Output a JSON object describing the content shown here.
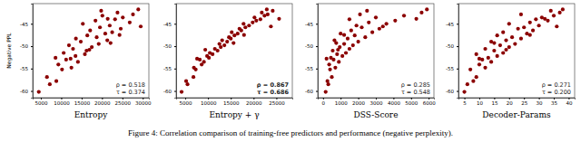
{
  "chart_data": [
    {
      "type": "scatter",
      "x_label": "Entropy",
      "y_label": "Negative PPL",
      "color": "#8b0000",
      "annotations": [
        "ρ = 0.518",
        "τ = 0.374"
      ],
      "xlim": [
        3000,
        31500
      ],
      "xticks": [
        5000,
        10000,
        15000,
        20000,
        25000,
        30000
      ],
      "ylim": [
        -61.5,
        -40.5
      ],
      "yticks": [
        -60,
        -55,
        -50,
        -45
      ],
      "grid": false,
      "x": [
        4500,
        7200,
        8800,
        6500,
        10200,
        12500,
        9300,
        14100,
        11200,
        8600,
        13500,
        15800,
        10600,
        16200,
        12900,
        17500,
        11900,
        19200,
        14800,
        21300,
        13600,
        18700,
        16400,
        20800,
        22500,
        17100,
        24600,
        19500,
        21900,
        15300,
        26800,
        18400,
        23200,
        25100,
        20100,
        27600,
        23800,
        19800,
        28900,
        24300,
        22100,
        12300,
        29500,
        21400,
        16900
      ],
      "y": [
        -60.2,
        -58.5,
        -57.8,
        -56.9,
        -55.2,
        -54.8,
        -54.1,
        -53.5,
        -53.0,
        -52.6,
        -52.2,
        -51.8,
        -51.5,
        -51.0,
        -50.6,
        -50.2,
        -49.8,
        -49.5,
        -49.0,
        -48.7,
        -48.3,
        -48.0,
        -47.6,
        -47.2,
        -46.9,
        -46.5,
        -46.1,
        -45.8,
        -45.4,
        -45.0,
        -44.7,
        -44.3,
        -44.0,
        -43.6,
        -43.2,
        -42.9,
        -42.5,
        -42.1,
        -41.8,
        -47.5,
        -49.3,
        -52.8,
        -45.6,
        -43.9,
        -50.8
      ]
    },
    {
      "type": "scatter",
      "x_label": "Entropy + γ",
      "color": "#8b0000",
      "annotations": [
        "ρ = 0.867",
        "τ = 0.686"
      ],
      "xlim": [
        3000,
        28500
      ],
      "xticks": [
        5000,
        10000,
        15000,
        20000,
        25000
      ],
      "ylim": [
        -61.5,
        -40.5
      ],
      "yticks": [
        -60,
        -55,
        -50,
        -45
      ],
      "grid": false,
      "x": [
        4200,
        5500,
        5200,
        6800,
        7300,
        6900,
        8600,
        9100,
        8200,
        10200,
        9800,
        11000,
        10400,
        12100,
        11500,
        12800,
        13600,
        12500,
        14200,
        13100,
        15000,
        14600,
        15800,
        16500,
        15200,
        17300,
        16900,
        18200,
        19000,
        17800,
        19800,
        20600,
        21500,
        20200,
        22400,
        23100,
        21800,
        24200,
        22900,
        17900,
        15600,
        7600,
        23800,
        25600,
        9400
      ],
      "y": [
        -60.2,
        -58.5,
        -57.8,
        -56.9,
        -55.2,
        -54.8,
        -54.1,
        -53.5,
        -53.0,
        -52.6,
        -52.2,
        -51.8,
        -51.5,
        -51.0,
        -50.6,
        -50.2,
        -49.8,
        -49.5,
        -49.0,
        -48.7,
        -48.3,
        -48.0,
        -47.6,
        -47.2,
        -46.9,
        -46.5,
        -46.1,
        -45.8,
        -45.4,
        -45.0,
        -44.7,
        -44.3,
        -44.0,
        -43.6,
        -43.2,
        -42.9,
        -42.5,
        -42.1,
        -41.8,
        -47.5,
        -49.3,
        -52.8,
        -45.6,
        -43.9,
        -50.8
      ]
    },
    {
      "type": "scatter",
      "x_label": "DSS-Score",
      "color": "#8b0000",
      "annotations": [
        "ρ = 0.285",
        "τ = 0.548"
      ],
      "xlim": [
        -300,
        6300
      ],
      "xticks": [
        0,
        1000,
        2000,
        3000,
        4000,
        5000,
        6000
      ],
      "ylim": [
        -61.5,
        -40.5
      ],
      "yticks": [
        -60,
        -55,
        -50,
        -45
      ],
      "grid": false,
      "x": [
        150,
        300,
        250,
        500,
        400,
        700,
        350,
        900,
        600,
        450,
        1100,
        800,
        1300,
        550,
        1500,
        950,
        1700,
        1200,
        2000,
        650,
        1400,
        2400,
        1800,
        1000,
        2800,
        1600,
        3200,
        2200,
        1900,
        3600,
        2600,
        4100,
        1500,
        3000,
        4600,
        2100,
        5600,
        2500,
        5900,
        1200,
        750,
        200,
        3400,
        5300,
        850
      ],
      "y": [
        -60.2,
        -58.5,
        -57.8,
        -56.9,
        -55.2,
        -54.8,
        -54.1,
        -53.5,
        -53.0,
        -52.6,
        -52.2,
        -51.8,
        -51.5,
        -51.0,
        -50.6,
        -50.2,
        -49.8,
        -49.5,
        -49.0,
        -48.7,
        -48.3,
        -48.0,
        -47.6,
        -47.2,
        -46.9,
        -46.5,
        -46.1,
        -45.8,
        -45.4,
        -45.0,
        -44.7,
        -44.3,
        -44.0,
        -43.6,
        -43.2,
        -42.9,
        -42.5,
        -42.1,
        -41.8,
        -47.5,
        -49.3,
        -52.8,
        -45.6,
        -43.9,
        -50.8
      ]
    },
    {
      "type": "scatter",
      "x_label": "Decoder-Params",
      "color": "#8b0000",
      "annotations": [
        "ρ = 0.271",
        "τ = 0.200"
      ],
      "xlim": [
        3,
        42
      ],
      "xticks": [
        5,
        10,
        15,
        20,
        25,
        30,
        35,
        40
      ],
      "ylim": [
        -61.5,
        -40.5
      ],
      "yticks": [
        -60,
        -55,
        -50,
        -45
      ],
      "grid": false,
      "x": [
        5,
        6,
        8,
        9,
        7,
        12,
        10,
        14,
        11,
        13,
        16,
        9,
        18,
        15,
        12,
        20,
        17,
        22,
        14,
        19,
        24,
        21,
        16,
        26,
        18,
        28,
        23,
        25,
        30,
        20,
        27,
        33,
        29,
        31,
        35,
        24,
        37,
        34,
        38,
        27,
        15,
        10,
        36,
        32,
        19
      ],
      "y": [
        -60.2,
        -58.5,
        -57.8,
        -56.9,
        -55.2,
        -54.8,
        -54.1,
        -53.5,
        -53.0,
        -52.6,
        -52.2,
        -51.8,
        -51.5,
        -51.0,
        -50.6,
        -50.2,
        -49.8,
        -49.5,
        -49.0,
        -48.7,
        -48.3,
        -48.0,
        -47.6,
        -47.2,
        -46.9,
        -46.5,
        -46.1,
        -45.8,
        -45.4,
        -45.0,
        -44.7,
        -44.3,
        -44.0,
        -43.6,
        -43.2,
        -42.9,
        -42.5,
        -42.1,
        -41.8,
        -47.5,
        -49.3,
        -52.8,
        -45.6,
        -43.9,
        -50.8
      ]
    }
  ],
  "caption": "Figure 4: Correlation comparison of training-free predictors and performance (negative perplexity)."
}
